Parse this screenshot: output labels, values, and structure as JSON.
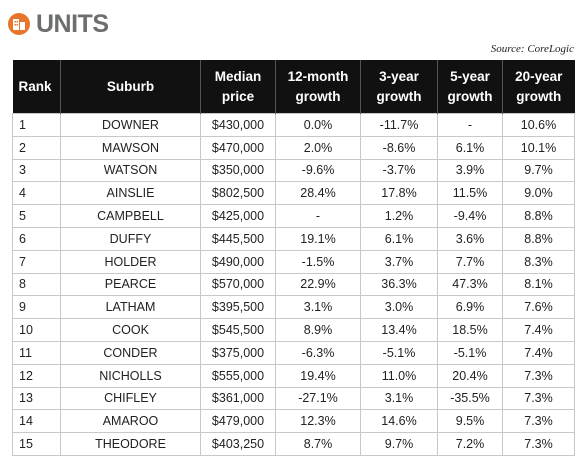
{
  "header": {
    "title": "UNITS",
    "source": "Source: CoreLogic"
  },
  "table": {
    "columns": [
      "Rank",
      "Suburb",
      "Median price",
      "12-month growth",
      "3-year growth",
      "5-year growth",
      "20-year growth"
    ],
    "rows": [
      [
        "1",
        "DOWNER",
        "$430,000",
        "0.0%",
        "-11.7%",
        "-",
        "10.6%"
      ],
      [
        "2",
        "MAWSON",
        "$470,000",
        "2.0%",
        "-8.6%",
        "6.1%",
        "10.1%"
      ],
      [
        "3",
        "WATSON",
        "$350,000",
        "-9.6%",
        "-3.7%",
        "3.9%",
        "9.7%"
      ],
      [
        "4",
        "AINSLIE",
        "$802,500",
        "28.4%",
        "17.8%",
        "11.5%",
        "9.0%"
      ],
      [
        "5",
        "CAMPBELL",
        "$425,000",
        "-",
        "1.2%",
        "-9.4%",
        "8.8%"
      ],
      [
        "6",
        "DUFFY",
        "$445,500",
        "19.1%",
        "6.1%",
        "3.6%",
        "8.8%"
      ],
      [
        "7",
        "HOLDER",
        "$490,000",
        "-1.5%",
        "3.7%",
        "7.7%",
        "8.3%"
      ],
      [
        "8",
        "PEARCE",
        "$570,000",
        "22.9%",
        "36.3%",
        "47.3%",
        "8.1%"
      ],
      [
        "9",
        "LATHAM",
        "$395,500",
        "3.1%",
        "3.0%",
        "6.9%",
        "7.6%"
      ],
      [
        "10",
        "COOK",
        "$545,500",
        "8.9%",
        "13.4%",
        "18.5%",
        "7.4%"
      ],
      [
        "11",
        "CONDER",
        "$375,000",
        "-6.3%",
        "-5.1%",
        "-5.1%",
        "7.4%"
      ],
      [
        "12",
        "NICHOLLS",
        "$555,000",
        "19.4%",
        "11.0%",
        "20.4%",
        "7.3%"
      ],
      [
        "13",
        "CHIFLEY",
        "$361,000",
        "-27.1%",
        "3.1%",
        "-35.5%",
        "7.3%"
      ],
      [
        "14",
        "AMAROO",
        "$479,000",
        "12.3%",
        "14.6%",
        "9.5%",
        "7.3%"
      ],
      [
        "15",
        "THEODORE",
        "$403,250",
        "8.7%",
        "9.7%",
        "7.2%",
        "7.3%"
      ]
    ]
  }
}
